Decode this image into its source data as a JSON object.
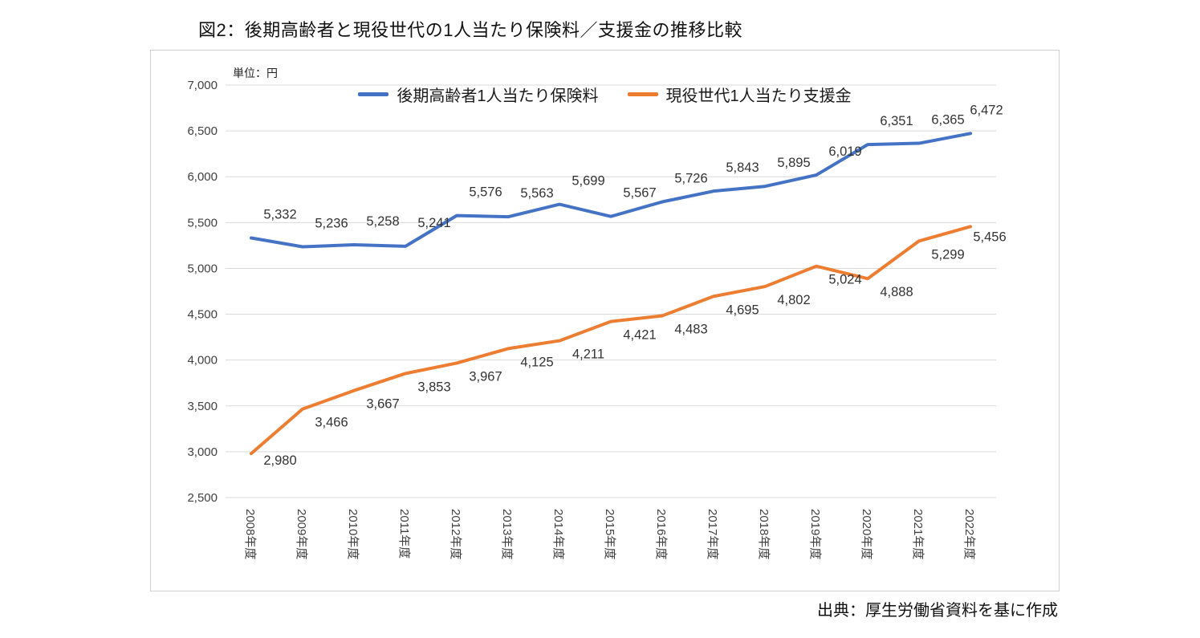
{
  "page": {
    "title": "図2：後期高齢者と現役世代の1人当たり保険料／支援金の推移比較",
    "unit_label": "単位：円",
    "source": "出典：厚生労働省資料を基に作成"
  },
  "chart_data": {
    "type": "line",
    "title": "図2：後期高齢者と現役世代の1人当たり保険料／支援金の推移比較",
    "categories": [
      "2008年度",
      "2009年度",
      "2010年度",
      "2011年度",
      "2012年度",
      "2013年度",
      "2014年度",
      "2015年度",
      "2016年度",
      "2017年度",
      "2018年度",
      "2019年度",
      "2020年度",
      "2021年度",
      "2022年度"
    ],
    "series": [
      {
        "name": "後期高齢者1人当たり保険料",
        "color": "#4472C4",
        "values": [
          5332,
          5236,
          5258,
          5241,
          5576,
          5563,
          5699,
          5567,
          5726,
          5843,
          5895,
          6019,
          6351,
          6365,
          6472
        ]
      },
      {
        "name": "現役世代1人当たり支援金",
        "color": "#ED7D31",
        "values": [
          2980,
          3466,
          3667,
          3853,
          3967,
          4125,
          4211,
          4421,
          4483,
          4695,
          4802,
          5024,
          4888,
          5299,
          5456
        ]
      }
    ],
    "ylim": [
      2500,
      7000
    ],
    "ytick_step": 500,
    "grid": true,
    "legend_position": "top",
    "data_labels": true,
    "colors": {
      "gridline": "#d9d9d9",
      "tick_text": "#404040",
      "data_label_text": "#333333"
    }
  }
}
